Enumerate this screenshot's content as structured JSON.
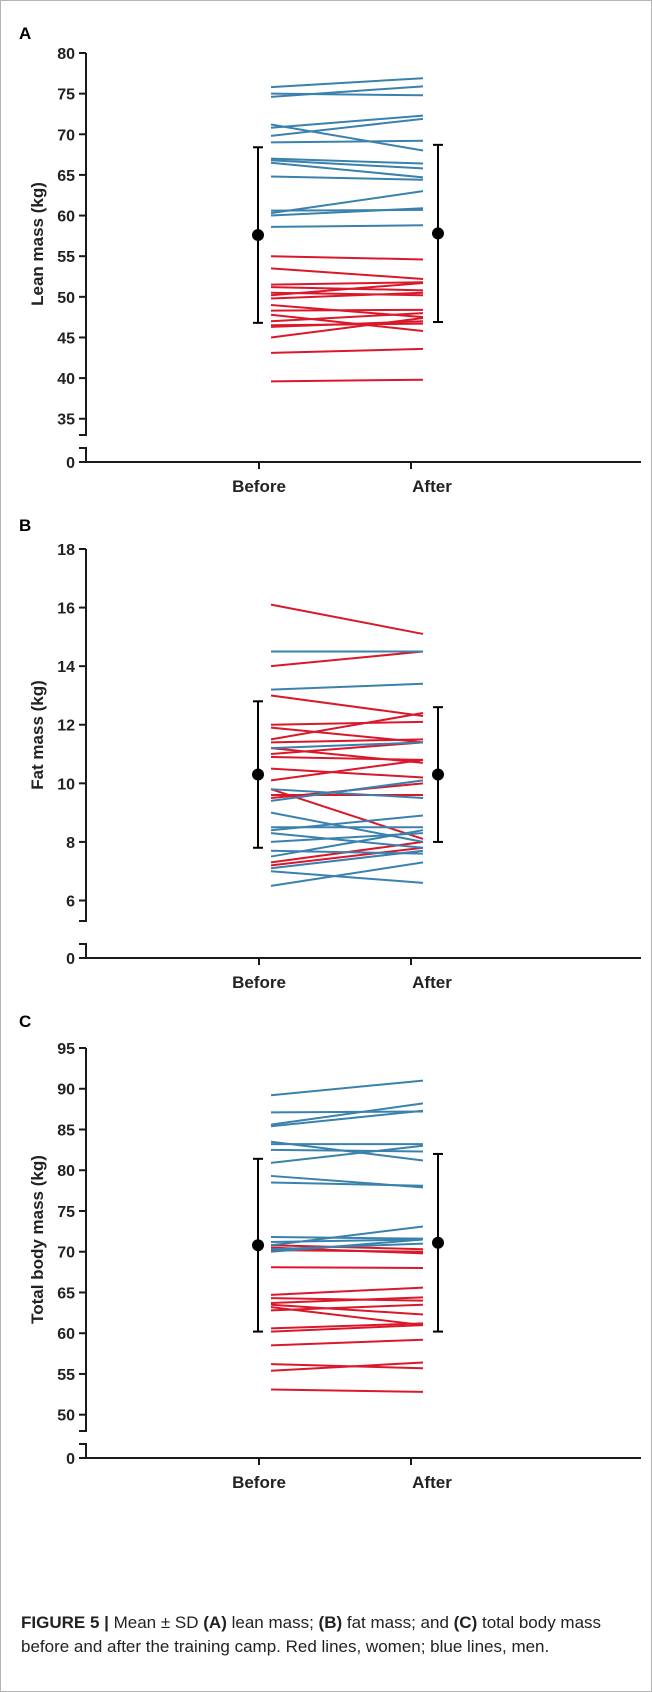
{
  "colors": {
    "women": "#d9192b",
    "men": "#3a82ad",
    "axis": "#1a1a1a",
    "mean": "#000000"
  },
  "caption": {
    "label": "FIGURE 5 |",
    "t1": " Mean ± SD ",
    "bA": "(A)",
    "t2": " lean mass; ",
    "bB": "(B)",
    "t3": " fat mass; and ",
    "bC": "(C)",
    "t4": " total body mass before and after the training camp. Red lines, women; blue lines, men."
  },
  "chart_data": [
    {
      "panel": "A",
      "type": "line",
      "ylabel": "Lean mass (kg)",
      "categories": [
        "Before",
        "After"
      ],
      "yticks": [
        35,
        40,
        45,
        50,
        55,
        60,
        65,
        70,
        75,
        80
      ],
      "ylim": [
        33,
        80
      ],
      "axis_break": true,
      "zero_label": "0",
      "mean": {
        "before": 57.6,
        "after": 57.8
      },
      "sd": {
        "before_low": 46.8,
        "before_high": 68.4,
        "after_low": 46.9,
        "after_high": 68.7
      },
      "women": [
        [
          55.0,
          54.6
        ],
        [
          53.5,
          52.2
        ],
        [
          51.5,
          51.8
        ],
        [
          51.2,
          50.8
        ],
        [
          50.5,
          50.2
        ],
        [
          50.2,
          51.7
        ],
        [
          49.8,
          50.5
        ],
        [
          49.0,
          47.5
        ],
        [
          48.3,
          48.4
        ],
        [
          47.8,
          45.8
        ],
        [
          47.0,
          48.0
        ],
        [
          46.5,
          46.7
        ],
        [
          46.3,
          47.0
        ],
        [
          45.0,
          47.4
        ],
        [
          43.1,
          43.6
        ],
        [
          39.6,
          39.8
        ]
      ],
      "men": [
        [
          75.8,
          76.9
        ],
        [
          75.0,
          74.8
        ],
        [
          74.6,
          75.9
        ],
        [
          71.2,
          68.0
        ],
        [
          70.8,
          72.3
        ],
        [
          69.8,
          71.9
        ],
        [
          69.0,
          69.2
        ],
        [
          67.0,
          66.4
        ],
        [
          66.8,
          65.8
        ],
        [
          66.5,
          64.7
        ],
        [
          64.8,
          64.4
        ],
        [
          60.6,
          60.7
        ],
        [
          60.3,
          63.0
        ],
        [
          60.0,
          60.9
        ],
        [
          58.6,
          58.8
        ]
      ]
    },
    {
      "panel": "B",
      "type": "line",
      "ylabel": "Fat mass (kg)",
      "categories": [
        "Before",
        "After"
      ],
      "yticks": [
        6,
        8,
        10,
        12,
        14,
        16,
        18
      ],
      "ylim": [
        5.3,
        18
      ],
      "axis_break": true,
      "zero_label": "0",
      "mean": {
        "before": 10.3,
        "after": 10.3
      },
      "sd": {
        "before_low": 7.8,
        "before_high": 12.8,
        "after_low": 8.0,
        "after_high": 12.6
      },
      "women": [
        [
          16.1,
          15.1
        ],
        [
          14.0,
          14.5
        ],
        [
          13.0,
          12.3
        ],
        [
          12.0,
          12.1
        ],
        [
          11.9,
          11.4
        ],
        [
          11.5,
          12.4
        ],
        [
          11.4,
          11.5
        ],
        [
          11.2,
          10.7
        ],
        [
          11.0,
          11.4
        ],
        [
          10.9,
          10.8
        ],
        [
          10.5,
          10.2
        ],
        [
          10.1,
          10.8
        ],
        [
          9.8,
          8.1
        ],
        [
          9.6,
          9.6
        ],
        [
          9.5,
          10.0
        ],
        [
          7.3,
          8.0
        ],
        [
          7.2,
          7.8
        ]
      ],
      "men": [
        [
          14.5,
          14.5
        ],
        [
          13.2,
          13.4
        ],
        [
          11.2,
          11.4
        ],
        [
          9.8,
          9.5
        ],
        [
          9.4,
          10.1
        ],
        [
          9.0,
          8.0
        ],
        [
          8.5,
          8.5
        ],
        [
          8.4,
          8.9
        ],
        [
          8.3,
          7.8
        ],
        [
          8.0,
          8.3
        ],
        [
          7.7,
          7.6
        ],
        [
          7.5,
          8.4
        ],
        [
          7.1,
          7.7
        ],
        [
          7.0,
          6.6
        ],
        [
          6.5,
          7.3
        ]
      ]
    },
    {
      "panel": "C",
      "type": "line",
      "ylabel": "Total body mass (kg)",
      "categories": [
        "Before",
        "After"
      ],
      "yticks": [
        50,
        55,
        60,
        65,
        70,
        75,
        80,
        85,
        90,
        95
      ],
      "ylim": [
        48,
        95
      ],
      "axis_break": true,
      "zero_label": "0",
      "mean": {
        "before": 70.8,
        "after": 71.1
      },
      "sd": {
        "before_low": 60.2,
        "before_high": 81.4,
        "after_low": 60.2,
        "after_high": 82.0
      },
      "women": [
        [
          70.8,
          70.3
        ],
        [
          70.5,
          69.8
        ],
        [
          70.2,
          70.0
        ],
        [
          68.1,
          68.0
        ],
        [
          64.7,
          65.6
        ],
        [
          64.3,
          64.0
        ],
        [
          63.7,
          64.4
        ],
        [
          63.5,
          62.3
        ],
        [
          63.2,
          61.0
        ],
        [
          62.8,
          63.5
        ],
        [
          60.6,
          61.2
        ],
        [
          60.2,
          61.0
        ],
        [
          58.5,
          59.2
        ],
        [
          56.2,
          55.7
        ],
        [
          55.4,
          56.4
        ],
        [
          53.1,
          52.8
        ]
      ],
      "men": [
        [
          89.2,
          91.0
        ],
        [
          87.1,
          87.2
        ],
        [
          85.6,
          88.2
        ],
        [
          85.4,
          87.3
        ],
        [
          83.5,
          81.2
        ],
        [
          83.2,
          83.2
        ],
        [
          82.5,
          82.3
        ],
        [
          80.9,
          83.0
        ],
        [
          79.3,
          77.9
        ],
        [
          78.5,
          78.1
        ],
        [
          71.8,
          71.6
        ],
        [
          71.2,
          71.5
        ],
        [
          70.8,
          73.1
        ],
        [
          70.3,
          71.0
        ],
        [
          70.0,
          71.5
        ]
      ]
    }
  ]
}
